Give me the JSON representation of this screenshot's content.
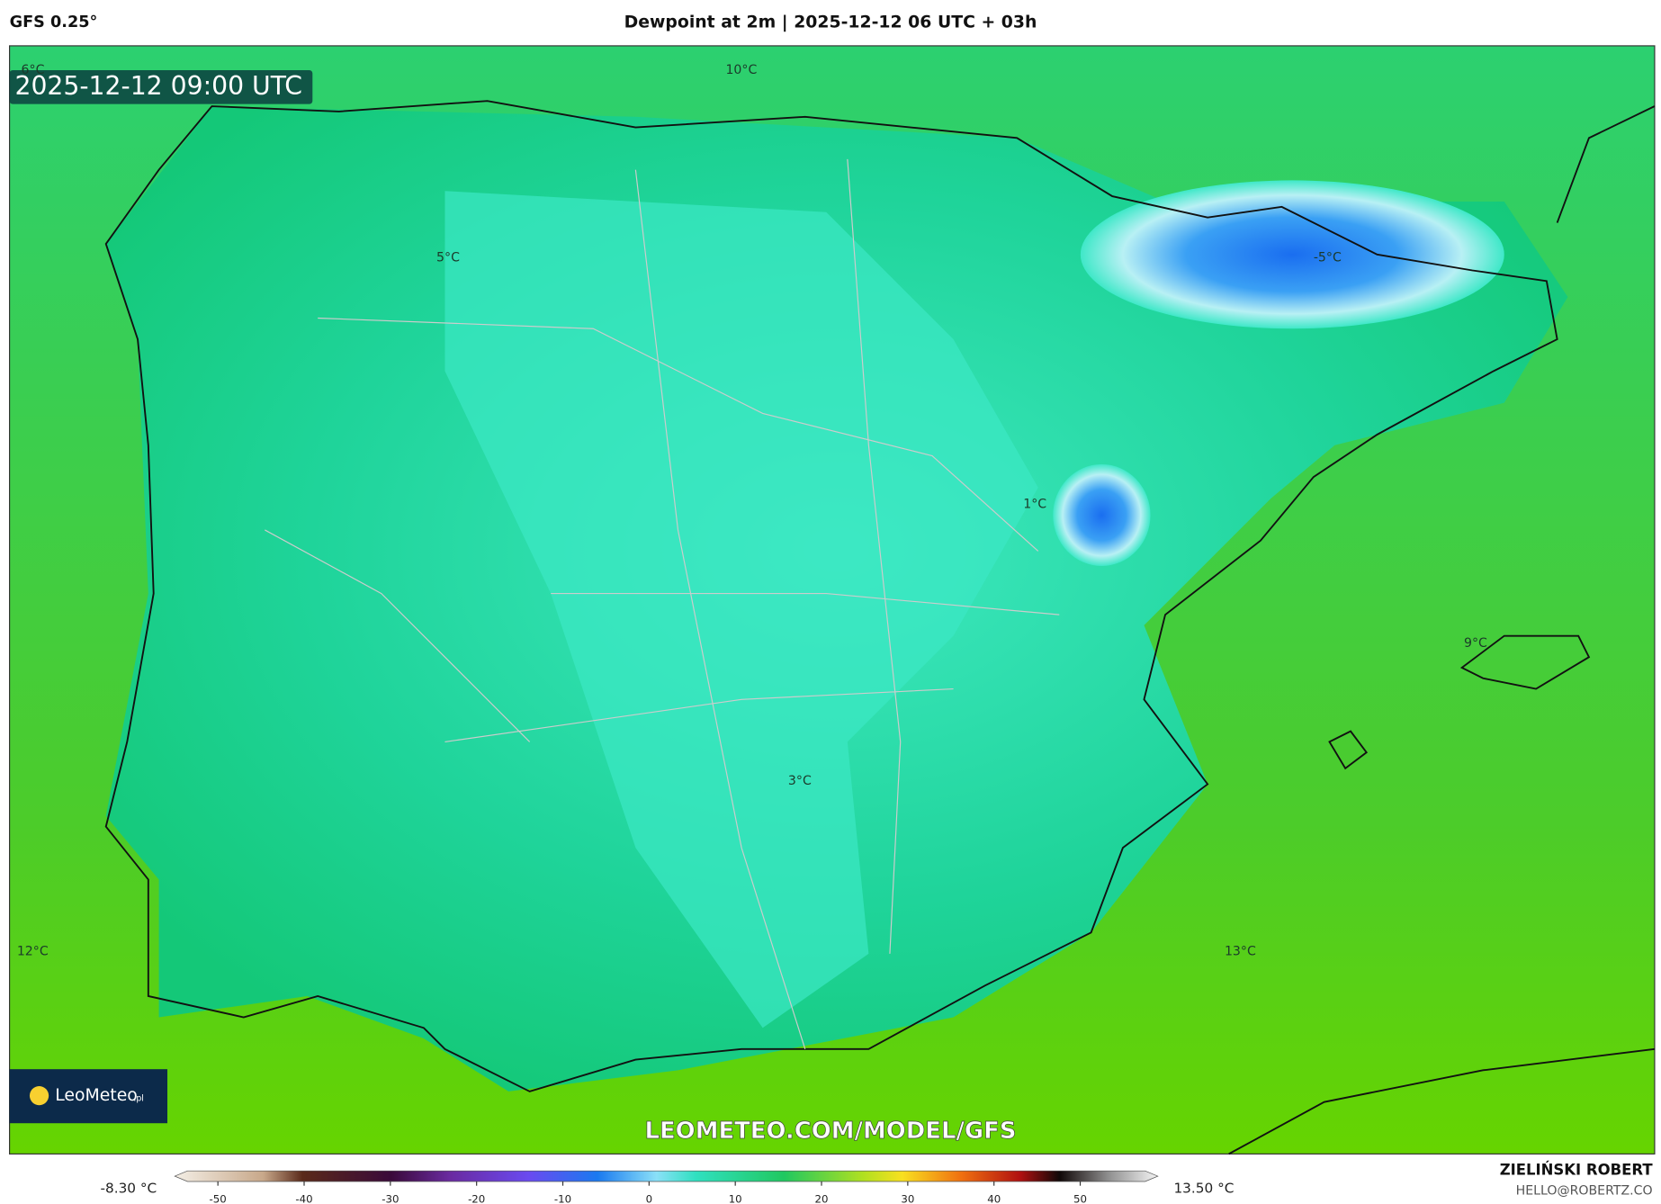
{
  "header": {
    "model": "GFS 0.25°",
    "title": "Dewpoint at 2m | 2025-12-12 06 UTC + 03h"
  },
  "map": {
    "timestamp": "2025-12-12 09:00 UTC",
    "labels": [
      "6°C",
      "10°C",
      "5°C",
      "-5°C",
      "1°C",
      "9°C",
      "3°C",
      "12°C",
      "13°C"
    ],
    "logo": "LeoMeteo",
    "logo_suffix": ".pl",
    "website": "LEOMETEO.COM/MODEL/GFS"
  },
  "colorbar": {
    "min_label": "-8.30 °C",
    "max_label": "13.50 °C",
    "lim": [
      -55,
      59
    ],
    "ticks": [
      -50,
      -40,
      -30,
      -20,
      -10,
      0,
      10,
      20,
      30,
      40,
      50
    ]
  },
  "footer": {
    "author": "ZIELIŃSKI ROBERT",
    "email": "HELLO@ROBERTZ.CO"
  }
}
